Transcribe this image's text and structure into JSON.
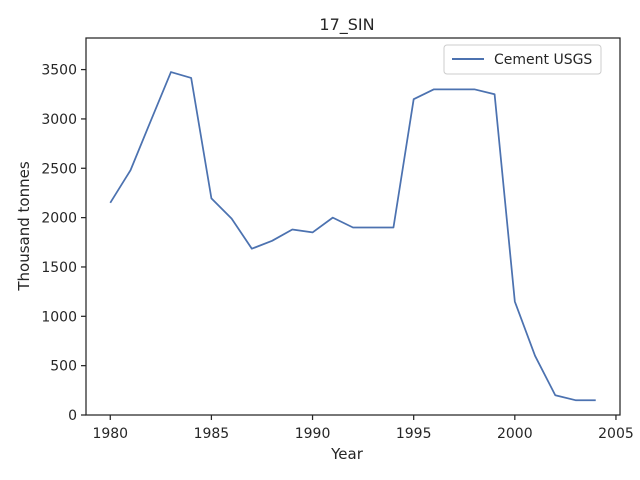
{
  "chart_data": {
    "type": "line",
    "title": "17_SIN",
    "xlabel": "Year",
    "ylabel": "Thousand tonnes",
    "xlim": [
      1978.8,
      2005.2
    ],
    "ylim": [
      0,
      3820
    ],
    "xticks": [
      1980,
      1985,
      1990,
      1995,
      2000,
      2005
    ],
    "yticks": [
      0,
      500,
      1000,
      1500,
      2000,
      2500,
      3000,
      3500
    ],
    "grid": false,
    "legend_position": "top-right",
    "series": [
      {
        "name": "Cement USGS",
        "color": "#4c72b0",
        "x": [
          1980,
          1981,
          1982,
          1983,
          1984,
          1985,
          1986,
          1987,
          1988,
          1989,
          1990,
          1991,
          1992,
          1993,
          1994,
          1995,
          1996,
          1997,
          1998,
          1999,
          2000,
          2001,
          2002,
          2003,
          2004
        ],
        "y": [
          2150,
          2480,
          2980,
          3475,
          3415,
          2195,
          1990,
          1685,
          1765,
          1880,
          1850,
          2000,
          1900,
          1900,
          1900,
          3200,
          3300,
          3300,
          3300,
          3250,
          1150,
          600,
          200,
          150,
          150
        ]
      }
    ]
  }
}
